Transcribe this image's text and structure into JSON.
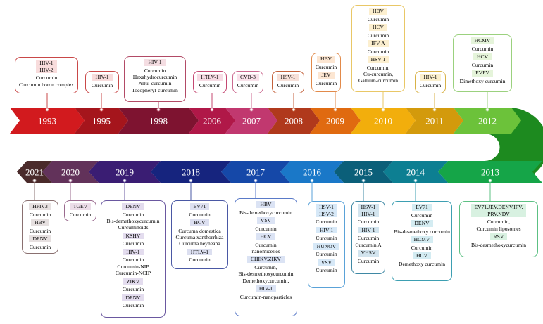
{
  "colors": {
    "background": "#ffffff",
    "turn": "#1d8a1f",
    "year_text": "#ffffff"
  },
  "timeline": {
    "top": [
      {
        "year": "1993",
        "color": "#d21a1e",
        "label_bg": "#f8dcdc",
        "border": "#c94848",
        "groups": [
          {
            "viruses": [
              "HIV-1",
              "HIV-2"
            ],
            "compounds": [
              "Curcumin",
              "Curcumin boron complex"
            ]
          }
        ]
      },
      {
        "year": "1995",
        "color": "#a5151c",
        "label_bg": "#f8dcdc",
        "border": "#c94848",
        "groups": [
          {
            "viruses": [
              "HIV-1"
            ],
            "compounds": [
              "Curcumin"
            ]
          }
        ]
      },
      {
        "year": "1998",
        "color": "#7e1330",
        "label_bg": "#f4dde2",
        "border": "#b24a66",
        "groups": [
          {
            "viruses": [
              "HIV-1"
            ],
            "compounds": [
              "Curcumin",
              "Hexahydrocurcumin",
              "Allul-curcumin",
              "Tocopheryl-curcumin"
            ]
          }
        ]
      },
      {
        "year": "2006",
        "color": "#b01848",
        "label_bg": "#f7dbe4",
        "border": "#c44872",
        "groups": [
          {
            "viruses": [
              "HTLV-1"
            ],
            "compounds": [
              "Curcumin"
            ]
          }
        ]
      },
      {
        "year": "2007",
        "color": "#c1386f",
        "label_bg": "#f9e1ea",
        "border": "#cc6a90",
        "groups": [
          {
            "viruses": [
              "CVB-3"
            ],
            "compounds": [
              "Curcumin"
            ]
          }
        ]
      },
      {
        "year": "2008",
        "color": "#b0391c",
        "label_bg": "#f7e0d8",
        "border": "#c4623c",
        "groups": [
          {
            "viruses": [
              "HSV-1"
            ],
            "compounds": [
              "Curcumin"
            ]
          }
        ]
      },
      {
        "year": "2009",
        "color": "#e06a10",
        "label_bg": "#fce6d2",
        "border": "#e28a4a",
        "groups": [
          {
            "viruses": [
              "HBV"
            ],
            "compounds": [
              "Curcumin"
            ]
          },
          {
            "viruses": [
              "JEV"
            ],
            "compounds": [
              "Curcumin"
            ]
          }
        ]
      },
      {
        "year": "2010",
        "color": "#f2ae0c",
        "label_bg": "#fcefcf",
        "border": "#e9c766",
        "groups": [
          {
            "viruses": [
              "HBV"
            ],
            "compounds": [
              "Curcumin"
            ]
          },
          {
            "viruses": [
              "HCV"
            ],
            "compounds": [
              "Curcumin"
            ]
          },
          {
            "viruses": [
              "IFV-A"
            ],
            "compounds": [
              "Curcumin"
            ]
          },
          {
            "viruses": [
              "HSV-1"
            ],
            "compounds": [
              "Curcumin,",
              "Cu-curcumin,",
              "Gallium-curcumin"
            ]
          }
        ]
      },
      {
        "year": "2011",
        "color": "#d39a0c",
        "label_bg": "#fbefcc",
        "border": "#d8b247",
        "groups": [
          {
            "viruses": [
              "HIV-1"
            ],
            "compounds": [
              "Curcumin"
            ]
          }
        ]
      },
      {
        "year": "2012",
        "color": "#6cc23a",
        "label_bg": "#e5f4da",
        "border": "#9bd17e",
        "groups": [
          {
            "viruses": [
              "HCMV"
            ],
            "compounds": [
              "Curcumin"
            ]
          },
          {
            "viruses": [
              "HCV"
            ],
            "compounds": [
              "Curcumin"
            ]
          },
          {
            "viruses": [
              "RVFV"
            ],
            "compounds": [
              "Dimethoxy curcumin"
            ]
          }
        ]
      }
    ],
    "bottom": [
      {
        "year": "2013",
        "color": "#15a548",
        "label_bg": "#d8f1e1",
        "border": "#5cc083",
        "groups": [
          {
            "viruses": [
              "EV71,JEV,DENV,IFV,",
              "PRV,NDV"
            ],
            "compounds": [
              "Curcumin,",
              "Curcumin liposomes"
            ]
          },
          {
            "viruses": [
              "RSV"
            ],
            "compounds": [
              "Bis-desmethoxycurcumin"
            ]
          }
        ]
      },
      {
        "year": "2014",
        "color": "#0d7f92",
        "label_bg": "#d4ecf2",
        "border": "#3d9fb2",
        "groups": [
          {
            "viruses": [
              "EV71"
            ],
            "compounds": [
              "Curcumin"
            ]
          },
          {
            "viruses": [
              "DENV"
            ],
            "compounds": [
              "Bis-desmethoxy curcumin"
            ]
          },
          {
            "viruses": [
              "HCMV"
            ],
            "compounds": [
              "Curcumin"
            ]
          },
          {
            "viruses": [
              "HCV"
            ],
            "compounds": [
              "Demethoxy curcumin"
            ]
          }
        ]
      },
      {
        "year": "2015",
        "color": "#0b5f79",
        "label_bg": "#d2e4ee",
        "border": "#3f88a4",
        "groups": [
          {
            "viruses": [
              "HSV-1",
              "HIV-1"
            ],
            "compounds": [
              "Curcumin"
            ]
          },
          {
            "viruses": [
              "HIV-1"
            ],
            "compounds": [
              "Curcumin",
              "Curcumin A"
            ]
          },
          {
            "viruses": [
              "VHSV"
            ],
            "compounds": [
              "Curcumin"
            ]
          }
        ]
      },
      {
        "year": "2016",
        "color": "#1a78c8",
        "label_bg": "#d6e8f7",
        "border": "#5aa2d8",
        "groups": [
          {
            "viruses": [
              "HSV-1",
              "HSV-2"
            ],
            "compounds": [
              "Curcumin"
            ]
          },
          {
            "viruses": [
              "HIV-1"
            ],
            "compounds": [
              "Curcumin"
            ]
          },
          {
            "viruses": [
              "HUNOV"
            ],
            "compounds": [
              "Curcumin"
            ]
          },
          {
            "viruses": [
              "VSV"
            ],
            "compounds": [
              "Curcumin"
            ]
          }
        ]
      },
      {
        "year": "2017",
        "color": "#1548a8",
        "label_bg": "#dbe3f4",
        "border": "#5a7ac8",
        "groups": [
          {
            "viruses": [
              "HBV"
            ],
            "compounds": [
              "Bis-demethoxycurcumin"
            ]
          },
          {
            "viruses": [
              "VSV"
            ],
            "compounds": [
              "Curcumin"
            ]
          },
          {
            "viruses": [
              "HCV"
            ],
            "compounds": [
              "Curcumin",
              "nanomicelles"
            ]
          },
          {
            "viruses": [
              "CHIKV,ZIKV"
            ],
            "compounds": [
              "Curcumin,",
              "Bis-desmethoxycurcumin",
              "Demethoxycurcumin,"
            ]
          },
          {
            "viruses": [
              "HIV-1"
            ],
            "compounds": [
              "Curcumin-nanoparticles"
            ]
          }
        ]
      },
      {
        "year": "2018",
        "color": "#16247e",
        "label_bg": "#dcdff0",
        "border": "#4a58a4",
        "groups": [
          {
            "viruses": [
              "EV71"
            ],
            "compounds": [
              "Curcumin"
            ]
          },
          {
            "viruses": [
              "HCV"
            ],
            "compounds": [
              "Curcuma domestica",
              "Curcuma xanthorrhiza",
              "Curcuma heyneana"
            ]
          },
          {
            "viruses": [
              "HTLV-1"
            ],
            "compounds": [
              "Curcumin"
            ]
          }
        ]
      },
      {
        "year": "2019",
        "color": "#3a1d73",
        "label_bg": "#e3dcee",
        "border": "#6a58a0",
        "groups": [
          {
            "viruses": [
              "DENV"
            ],
            "compounds": [
              "Curcumin",
              "Bis-demethoxycurcumin",
              "Curcuminoids"
            ]
          },
          {
            "viruses": [
              "KSHV"
            ],
            "compounds": [
              "Curcumin"
            ]
          },
          {
            "viruses": [
              "HIV-1"
            ],
            "compounds": [
              "Curcumin",
              "Curcumin-NIP",
              "Curcumin-NCIP"
            ]
          },
          {
            "viruses": [
              "ZIKV"
            ],
            "compounds": [
              "Curcumin"
            ]
          },
          {
            "viruses": [
              "DENV"
            ],
            "compounds": [
              "Curcumin"
            ]
          }
        ]
      },
      {
        "year": "2020",
        "color": "#62325a",
        "label_bg": "#ecdde8",
        "border": "#9a6a8e",
        "groups": [
          {
            "viruses": [
              "TGEV"
            ],
            "compounds": [
              "Curcumin"
            ]
          }
        ]
      },
      {
        "year": "2021",
        "color": "#4a2a2a",
        "label_bg": "#e6e0e0",
        "border": "#8a7070",
        "groups": [
          {
            "viruses": [
              "HPIV3"
            ],
            "compounds": [
              "Curcumin"
            ]
          },
          {
            "viruses": [
              "HBV"
            ],
            "compounds": [
              "Curcumin"
            ]
          },
          {
            "viruses": [
              "DENV"
            ],
            "compounds": [
              "Curcumin"
            ]
          }
        ]
      }
    ]
  }
}
